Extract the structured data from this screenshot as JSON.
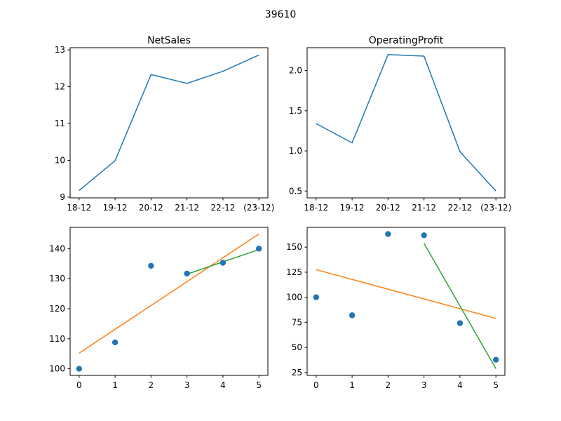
{
  "figure": {
    "title": "39610"
  },
  "colors": {
    "series": "#1f77b4",
    "trend_all": "#ff7f0e",
    "trend_recent": "#2ca02c"
  },
  "chart_data": [
    {
      "type": "line",
      "title": "NetSales",
      "xlabel": "",
      "ylabel": "",
      "categories": [
        "18-12",
        "19-12",
        "20-12",
        "21-12",
        "22-12",
        "(23-12)"
      ],
      "series": [
        {
          "values": [
            9.18,
            9.99,
            12.33,
            12.09,
            12.42,
            12.86
          ]
        }
      ],
      "yticks": [
        9,
        10,
        11,
        12,
        13
      ],
      "ylim": [
        8.98,
        13.06
      ],
      "grid": false
    },
    {
      "type": "line",
      "title": "OperatingProfit",
      "xlabel": "",
      "ylabel": "",
      "categories": [
        "18-12",
        "19-12",
        "20-12",
        "21-12",
        "22-12",
        "(23-12)"
      ],
      "series": [
        {
          "values": [
            1.34,
            1.1,
            2.2,
            2.18,
            0.99,
            0.5
          ]
        }
      ],
      "yticks": [
        0.5,
        1.0,
        1.5,
        2.0
      ],
      "ytick_labels": [
        "0.5",
        "1.0",
        "1.5",
        "2.0"
      ],
      "ylim": [
        0.415,
        2.285
      ],
      "grid": false
    },
    {
      "type": "scatter",
      "title": "",
      "xlabel": "",
      "ylabel": "",
      "x": [
        0,
        1,
        2,
        3,
        4,
        5
      ],
      "points": [
        100.0,
        108.8,
        134.3,
        131.7,
        135.3,
        140.0
      ],
      "trend_all": {
        "x": [
          0,
          5
        ],
        "y": [
          105.2,
          144.9
        ]
      },
      "trend_recent": {
        "x": [
          3,
          5
        ],
        "y": [
          131.5,
          139.7
        ]
      },
      "xticks": [
        0,
        1,
        2,
        3,
        4,
        5
      ],
      "yticks": [
        100,
        110,
        120,
        130,
        140
      ],
      "xlim": [
        -0.25,
        5.25
      ],
      "ylim": [
        97.8,
        147.1
      ],
      "grid": false
    },
    {
      "type": "scatter",
      "title": "",
      "xlabel": "",
      "ylabel": "",
      "x": [
        0,
        1,
        2,
        3,
        4,
        5
      ],
      "points": [
        100.0,
        82.0,
        163.0,
        161.8,
        74.2,
        37.7
      ],
      "trend_all": {
        "x": [
          0,
          5
        ],
        "y": [
          127.5,
          78.9
        ]
      },
      "trend_recent": {
        "x": [
          3,
          5
        ],
        "y": [
          153.8,
          28.8
        ]
      },
      "xticks": [
        0,
        1,
        2,
        3,
        4,
        5
      ],
      "yticks": [
        25,
        50,
        75,
        100,
        125,
        150
      ],
      "xlim": [
        -0.25,
        5.25
      ],
      "ylim": [
        22.1,
        169.7
      ],
      "grid": false
    }
  ]
}
